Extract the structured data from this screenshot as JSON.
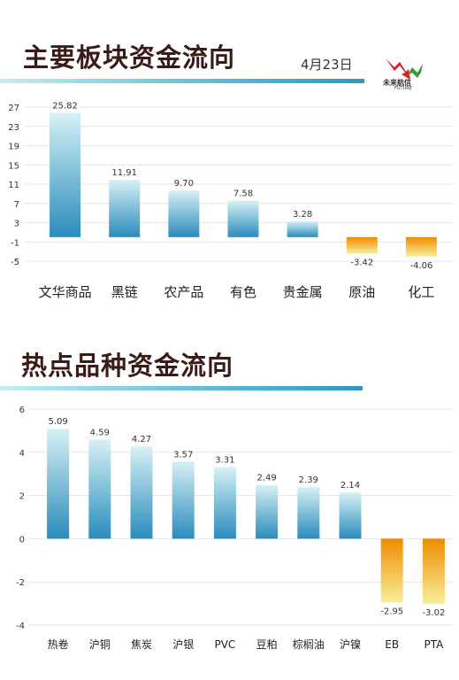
{
  "header": {
    "title1": "主要板块资金流向",
    "date": "4月23日",
    "title2": "热点品种资金流向",
    "logo_text": "未来航信",
    "logo_sub": "FUTURE"
  },
  "colors": {
    "title": "#3b1b18",
    "positive_top": "#d6f1f5",
    "positive_bottom": "#2a8cbc",
    "negative_top": "#f08c00",
    "negative_bottom": "#f7ef9a",
    "accent_bar": "#63bfd6",
    "logo_red": "#d81e1e",
    "logo_green": "#3a9a3a"
  },
  "chart_data": [
    {
      "type": "bar",
      "title": "主要板块资金流向",
      "categories": [
        "文华商品",
        "黑链",
        "农产品",
        "有色",
        "贵金属",
        "原油",
        "化工"
      ],
      "values": [
        25.82,
        11.91,
        9.7,
        7.58,
        3.28,
        -3.42,
        -4.06
      ],
      "value_labels": [
        "25.82",
        "11.91",
        "9.70",
        "7.58",
        "3.28",
        "-3.42",
        "-4.06"
      ],
      "yticks": [
        "27",
        "23",
        "19",
        "15",
        "11",
        "7",
        "3",
        "-1",
        "-5"
      ],
      "ylim": [
        -5,
        27
      ],
      "grid": true
    },
    {
      "type": "bar",
      "title": "热点品种资金流向",
      "categories": [
        "热卷",
        "沪铜",
        "焦炭",
        "沪银",
        "PVC",
        "豆粕",
        "棕榈油",
        "沪镍",
        "EB",
        "PTA"
      ],
      "values": [
        5.09,
        4.59,
        4.27,
        3.57,
        3.31,
        2.49,
        2.39,
        2.14,
        -2.95,
        -3.02
      ],
      "value_labels": [
        "5.09",
        "4.59",
        "4.27",
        "3.57",
        "3.31",
        "2.49",
        "2.39",
        "2.14",
        "-2.95",
        "-3.02"
      ],
      "yticks": [
        "6",
        "4",
        "2",
        "0",
        "-2",
        "-4"
      ],
      "ylim": [
        -4,
        6
      ],
      "grid": true
    }
  ]
}
